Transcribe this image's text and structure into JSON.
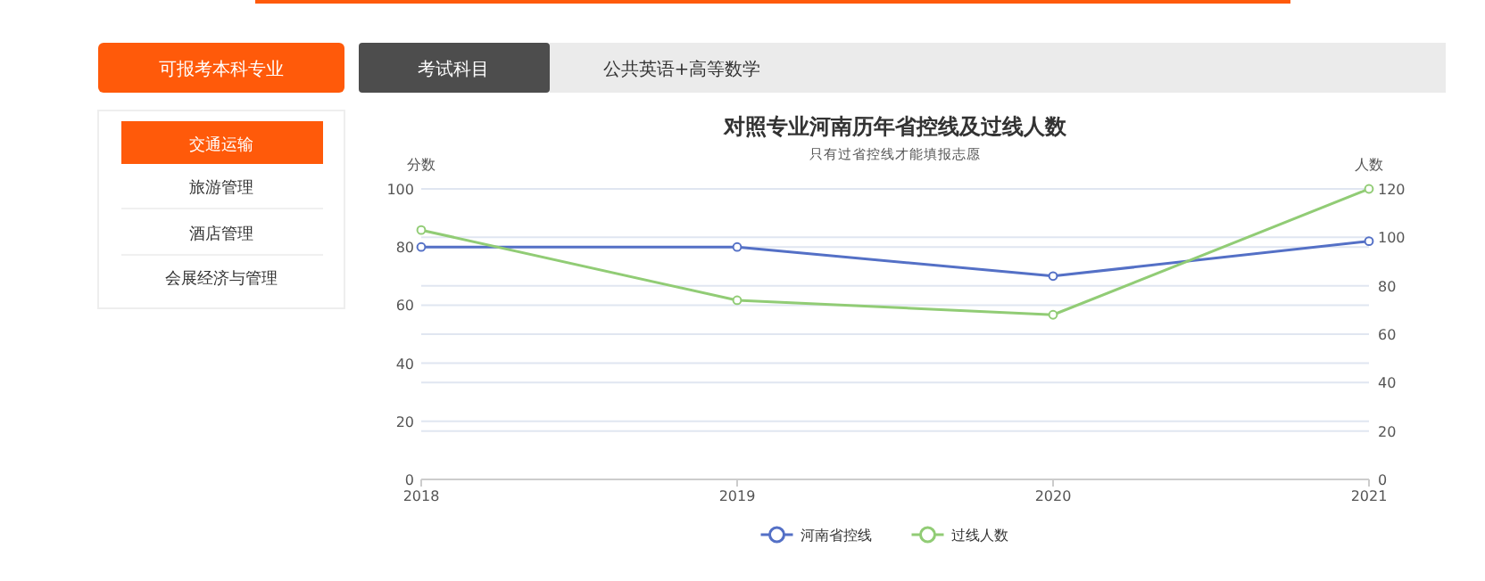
{
  "chart_data": {
    "type": "line",
    "title": "对照专业河南历年省控线及过线人数",
    "subtitle": "只有过省控线才能填报志愿",
    "ylabel": "分数",
    "y2label": "人数",
    "x": [
      2018,
      2019,
      2020,
      2021
    ],
    "xlim": [
      2018,
      2021
    ],
    "xticks": [
      2018,
      2019,
      2020,
      2021
    ],
    "ylim": [
      0,
      100
    ],
    "yticks": [
      0,
      20,
      40,
      60,
      80,
      100
    ],
    "y2lim": [
      0,
      120
    ],
    "y2ticks": [
      0,
      20,
      40,
      60,
      80,
      100,
      120
    ],
    "series": [
      {
        "name": "河南省控线",
        "color": "#5470c6",
        "values": [
          80,
          80,
          70,
          82
        ]
      },
      {
        "name": "过线人数",
        "color": "#91cc75",
        "values": [
          103,
          74,
          68,
          120
        ],
        "axis": "y2"
      }
    ],
    "grid": "y",
    "legend": "bottom",
    "marker": "circle",
    "line_style": "solid",
    "annotations": [
      "可报考本科专业",
      "考试科目",
      "公共英语+高等数学",
      "交通运输",
      "旅游管理",
      "酒店管理",
      "会展经济与管理"
    ]
  }
}
